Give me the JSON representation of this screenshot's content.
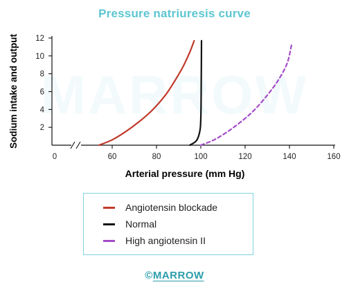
{
  "colors": {
    "title": "#5cc6d0",
    "accent": "#2a9dab",
    "axis": "#111111",
    "blockade": "#c0392b",
    "normal": "#111111",
    "high": "#a34bc8"
  },
  "watermark": "MARROW",
  "footer": {
    "copyright_symbol": "©",
    "brand": "MARROW"
  },
  "chart_data": {
    "type": "line",
    "title": "Pressure natriuresis curve",
    "xlabel": "Arterial pressure (mm Hg)",
    "ylabel": "Sodium intake and output",
    "xlim": [
      0,
      160
    ],
    "ylim": [
      0,
      12
    ],
    "x_axis_break": true,
    "x_ticks": [
      "0",
      "60",
      "80",
      "100",
      "120",
      "140",
      "160"
    ],
    "y_ticks": [
      "2",
      "4",
      "6",
      "8",
      "10",
      "12"
    ],
    "grid": false,
    "legend_position": "bottom",
    "series": [
      {
        "name": "Angiotensin blockade",
        "color_key": "blockade",
        "style": "solid",
        "x": [
          54,
          60,
          66,
          72,
          78,
          84,
          88,
          92,
          95,
          97
        ],
        "y": [
          0,
          0.6,
          1.5,
          2.6,
          3.9,
          5.6,
          7.1,
          8.8,
          10.4,
          11.7
        ]
      },
      {
        "name": "Normal",
        "color_key": "normal",
        "style": "solid",
        "x": [
          95,
          98,
          99.5,
          100,
          100.2,
          100.3
        ],
        "y": [
          0,
          0.5,
          1.5,
          3,
          7,
          11.7
        ]
      },
      {
        "name": "High angiotensin II",
        "color_key": "high",
        "style": "dashed",
        "x": [
          100,
          106,
          112,
          118,
          124,
          130,
          135,
          139,
          141
        ],
        "y": [
          0,
          0.6,
          1.5,
          2.6,
          3.9,
          5.6,
          7.3,
          9.2,
          11.3
        ]
      }
    ]
  }
}
